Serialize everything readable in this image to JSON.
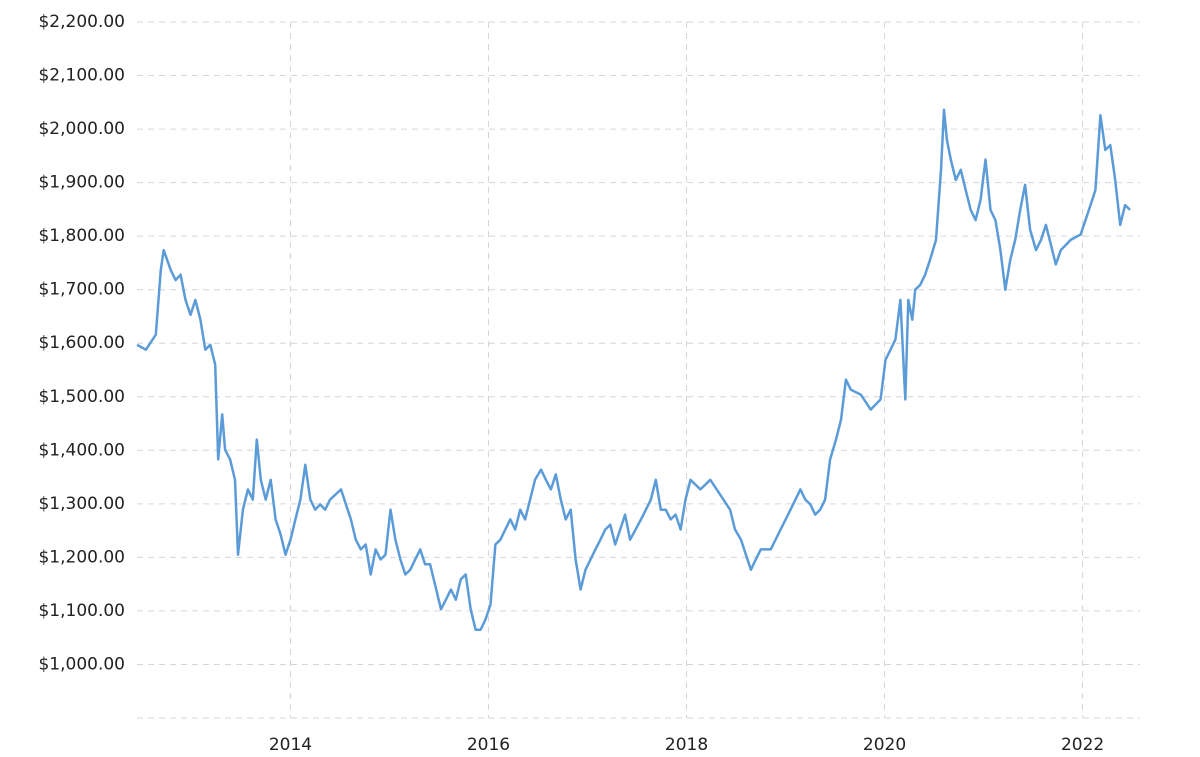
{
  "chart_data": {
    "type": "line",
    "x": [
      2012.45,
      2012.54,
      2012.64,
      2012.69,
      2012.72,
      2012.79,
      2012.84,
      2012.89,
      2012.94,
      2012.99,
      2013.04,
      2013.09,
      2013.14,
      2013.19,
      2013.24,
      2013.27,
      2013.31,
      2013.34,
      2013.39,
      2013.44,
      2013.47,
      2013.52,
      2013.57,
      2013.62,
      2013.66,
      2013.7,
      2013.75,
      2013.8,
      2013.85,
      2013.9,
      2013.95,
      2014.0,
      2014.05,
      2014.1,
      2014.15,
      2014.2,
      2014.25,
      2014.3,
      2014.35,
      2014.4,
      2014.51,
      2014.56,
      2014.61,
      2014.66,
      2014.71,
      2014.76,
      2014.81,
      2014.86,
      2014.91,
      2014.96,
      2015.01,
      2015.06,
      2015.11,
      2015.16,
      2015.21,
      2015.26,
      2015.31,
      2015.36,
      2015.41,
      2015.52,
      2015.57,
      2015.62,
      2015.67,
      2015.72,
      2015.77,
      2015.82,
      2015.87,
      2015.92,
      2015.97,
      2016.02,
      2016.07,
      2016.12,
      2016.17,
      2016.22,
      2016.27,
      2016.32,
      2016.37,
      2016.42,
      2016.47,
      2016.53,
      2016.58,
      2016.63,
      2016.68,
      2016.73,
      2016.78,
      2016.83,
      2016.88,
      2016.93,
      2016.98,
      2017.03,
      2017.08,
      2017.13,
      2017.18,
      2017.23,
      2017.28,
      2017.33,
      2017.38,
      2017.43,
      2017.54,
      2017.59,
      2017.64,
      2017.69,
      2017.74,
      2017.79,
      2017.84,
      2017.89,
      2017.94,
      2017.99,
      2018.04,
      2018.09,
      2018.14,
      2018.24,
      2018.34,
      2018.44,
      2018.49,
      2018.55,
      2018.6,
      2018.65,
      2018.7,
      2018.75,
      2018.85,
      2018.95,
      2019.05,
      2019.15,
      2019.2,
      2019.25,
      2019.3,
      2019.35,
      2019.4,
      2019.45,
      2019.51,
      2019.56,
      2019.61,
      2019.66,
      2019.76,
      2019.86,
      2019.96,
      2020.01,
      2020.06,
      2020.11,
      2020.16,
      2020.21,
      2020.24,
      2020.28,
      2020.31,
      2020.36,
      2020.41,
      2020.46,
      2020.52,
      2020.57,
      2020.6,
      2020.63,
      2020.67,
      2020.72,
      2020.77,
      2020.82,
      2020.87,
      2020.92,
      2020.97,
      2021.02,
      2021.07,
      2021.12,
      2021.17,
      2021.22,
      2021.27,
      2021.32,
      2021.37,
      2021.42,
      2021.47,
      2021.53,
      2021.58,
      2021.63,
      2021.68,
      2021.73,
      2021.78,
      2021.88,
      2021.98,
      2022.03,
      2022.08,
      2022.13,
      2022.18,
      2022.23,
      2022.28,
      2022.33,
      2022.38,
      2022.43,
      2022.48
    ],
    "values": [
      1597,
      1588,
      1616,
      1737,
      1774,
      1737,
      1718,
      1728,
      1681,
      1653,
      1681,
      1644,
      1588,
      1597,
      1560,
      1383,
      1467,
      1401,
      1383,
      1345,
      1205,
      1289,
      1327,
      1308,
      1420,
      1345,
      1308,
      1345,
      1271,
      1243,
      1205,
      1233,
      1271,
      1308,
      1373,
      1308,
      1289,
      1299,
      1289,
      1308,
      1327,
      1299,
      1271,
      1233,
      1215,
      1224,
      1168,
      1215,
      1196,
      1205,
      1289,
      1233,
      1196,
      1168,
      1177,
      1196,
      1215,
      1187,
      1187,
      1103,
      1121,
      1140,
      1121,
      1159,
      1168,
      1103,
      1065,
      1065,
      1084,
      1112,
      1224,
      1233,
      1252,
      1271,
      1252,
      1289,
      1271,
      1308,
      1345,
      1364,
      1345,
      1327,
      1355,
      1308,
      1271,
      1289,
      1196,
      1140,
      1177,
      1196,
      1215,
      1233,
      1252,
      1261,
      1224,
      1252,
      1280,
      1233,
      1271,
      1289,
      1308,
      1345,
      1289,
      1289,
      1271,
      1280,
      1252,
      1308,
      1345,
      1336,
      1327,
      1345,
      1317,
      1289,
      1252,
      1233,
      1205,
      1177,
      1196,
      1215,
      1215,
      1252,
      1289,
      1327,
      1308,
      1299,
      1280,
      1289,
      1308,
      1383,
      1420,
      1457,
      1532,
      1513,
      1504,
      1476,
      1495,
      1569,
      1588,
      1607,
      1681,
      1495,
      1681,
      1644,
      1700,
      1709,
      1728,
      1756,
      1793,
      1924,
      2036,
      1980,
      1942,
      1905,
      1924,
      1886,
      1849,
      1830,
      1868,
      1943,
      1849,
      1830,
      1774,
      1700,
      1756,
      1793,
      1849,
      1896,
      1812,
      1774,
      1793,
      1821,
      1784,
      1747,
      1774,
      1793,
      1803,
      1830,
      1858,
      1886,
      2026,
      1961,
      1970,
      1905,
      1821,
      1858,
      1849
    ],
    "color": "#5b9bd8",
    "xlim": [
      2012.45,
      2022.58
    ],
    "xticks": [
      2014,
      2016,
      2018,
      2020,
      2022
    ],
    "ylim": [
      900,
      2200
    ],
    "yticks": [
      {
        "value": 1000,
        "label": "$1,000.00"
      },
      {
        "value": 1100,
        "label": "$1,100.00"
      },
      {
        "value": 1200,
        "label": "$1,200.00"
      },
      {
        "value": 1300,
        "label": "$1,300.00"
      },
      {
        "value": 1400,
        "label": "$1,400.00"
      },
      {
        "value": 1500,
        "label": "$1,500.00"
      },
      {
        "value": 1600,
        "label": "$1,600.00"
      },
      {
        "value": 1700,
        "label": "$1,700.00"
      },
      {
        "value": 1800,
        "label": "$1,800.00"
      },
      {
        "value": 1900,
        "label": "$1,900.00"
      },
      {
        "value": 2000,
        "label": "$2,000.00"
      },
      {
        "value": 2100,
        "label": "$2,100.00"
      },
      {
        "value": 2200,
        "label": "$2,200.00"
      }
    ],
    "grid": true
  }
}
